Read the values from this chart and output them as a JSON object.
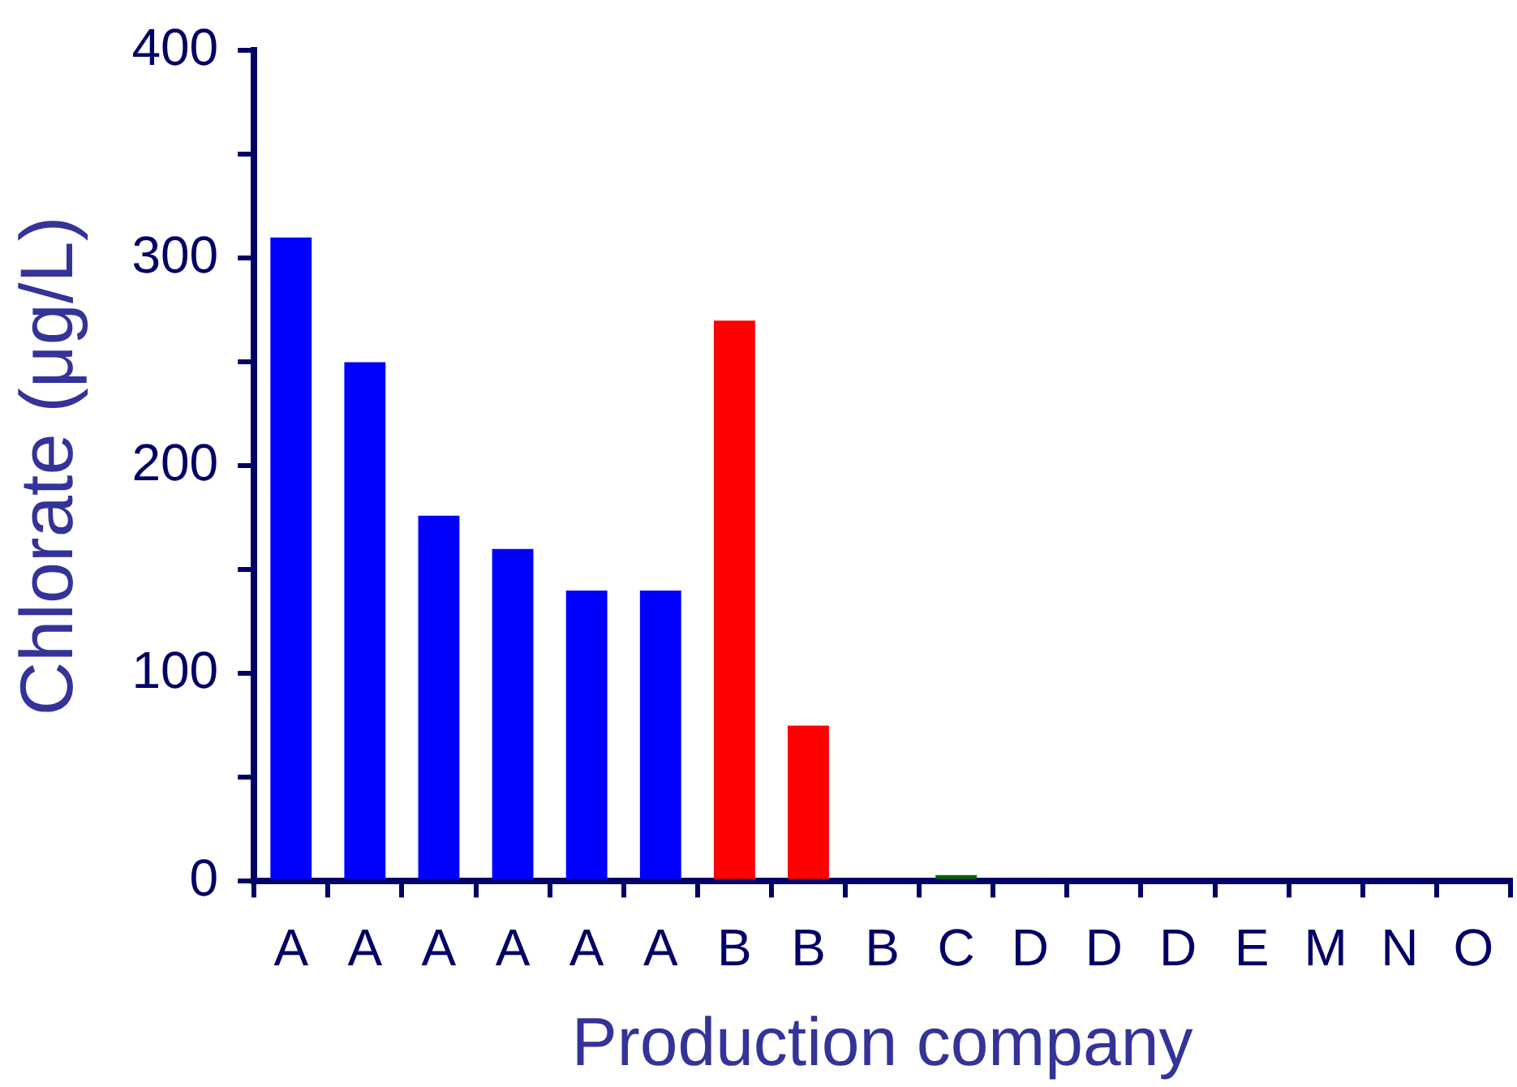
{
  "chart_data": {
    "type": "bar",
    "xlabel": "Production company",
    "ylabel": "Chlorate (μg/L)",
    "categories": [
      "A",
      "A",
      "A",
      "A",
      "A",
      "A",
      "B",
      "B",
      "B",
      "C",
      "D",
      "D",
      "D",
      "E",
      "M",
      "N",
      "O"
    ],
    "values": [
      310,
      250,
      176,
      160,
      140,
      140,
      270,
      75,
      0,
      3,
      1,
      0,
      0,
      0,
      0,
      0,
      0
    ],
    "colors": [
      "#0000ff",
      "#0000ff",
      "#0000ff",
      "#0000ff",
      "#0000ff",
      "#0000ff",
      "#ff0000",
      "#ff0000",
      "#ff0000",
      "#006400",
      "#660066",
      "#660066",
      "#660066",
      "#0000ff",
      "#0000ff",
      "#0000ff",
      "#0000ff"
    ],
    "ylim": [
      0,
      400
    ],
    "yticks": [
      0,
      {
        "value": 50,
        "label": null
      },
      100,
      {
        "value": 150,
        "label": null
      },
      200,
      {
        "value": 250,
        "label": null
      },
      300,
      {
        "value": 350,
        "label": null
      },
      400
    ],
    "grid": false,
    "legend": false
  }
}
